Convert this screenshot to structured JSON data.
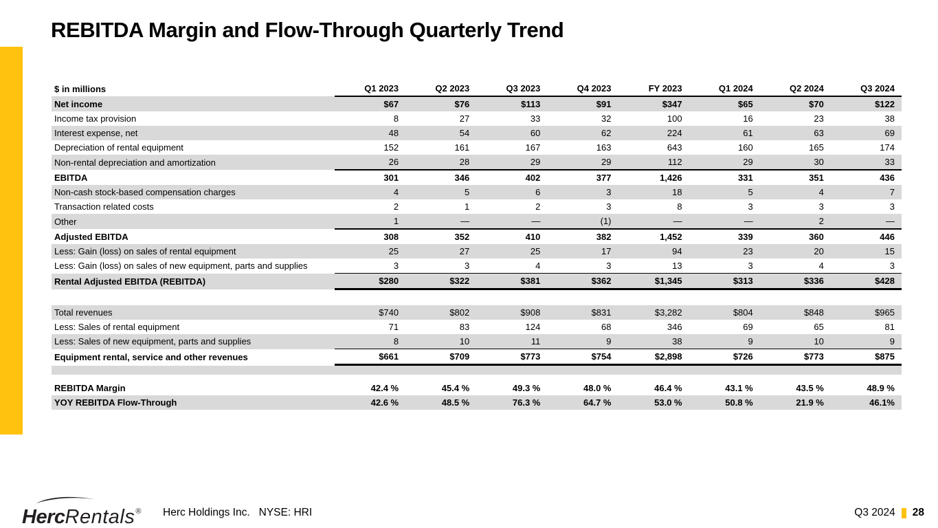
{
  "title": "REBITDA Margin and Flow-Through Quarterly Trend",
  "colors": {
    "accent": "#FFC20E",
    "row_shade": "#D9D9D9",
    "logo": "#231F20",
    "text": "#000000"
  },
  "table": {
    "units_label": "$ in millions",
    "columns": [
      "Q1 2023",
      "Q2 2023",
      "Q3 2023",
      "Q4 2023",
      "FY 2023",
      "Q1 2024",
      "Q2 2024",
      "Q3 2024"
    ],
    "rows": [
      {
        "label": "Net income",
        "values": [
          "$67",
          "$76",
          "$113",
          "$91",
          "$347",
          "$65",
          "$70",
          "$122"
        ],
        "bold": true,
        "shaded": true
      },
      {
        "label": "Income tax provision",
        "values": [
          "8",
          "27",
          "33",
          "32",
          "100",
          "16",
          "23",
          "38"
        ]
      },
      {
        "label": "Interest expense, net",
        "values": [
          "48",
          "54",
          "60",
          "62",
          "224",
          "61",
          "63",
          "69"
        ],
        "shaded": true
      },
      {
        "label": "Depreciation of rental equipment",
        "values": [
          "152",
          "161",
          "167",
          "163",
          "643",
          "160",
          "165",
          "174"
        ]
      },
      {
        "label": "Non-rental depreciation and amortization",
        "values": [
          "26",
          "28",
          "29",
          "29",
          "112",
          "29",
          "30",
          "33"
        ],
        "shaded": true,
        "rule": "medium"
      },
      {
        "label": "EBITDA",
        "values": [
          "301",
          "346",
          "402",
          "377",
          "1,426",
          "331",
          "351",
          "436"
        ],
        "bold": true
      },
      {
        "label": "Non-cash stock-based compensation charges",
        "values": [
          "4",
          "5",
          "6",
          "3",
          "18",
          "5",
          "4",
          "7"
        ],
        "shaded": true
      },
      {
        "label": "Transaction related costs",
        "values": [
          "2",
          "1",
          "2",
          "3",
          "8",
          "3",
          "3",
          "3"
        ]
      },
      {
        "label": "Other",
        "values": [
          "1",
          "—",
          "—",
          "(1)",
          "—",
          "—",
          "2",
          "—"
        ],
        "shaded": true,
        "rule": "medium"
      },
      {
        "label": "Adjusted EBITDA",
        "values": [
          "308",
          "352",
          "410",
          "382",
          "1,452",
          "339",
          "360",
          "446"
        ],
        "bold": true
      },
      {
        "label": "Less: Gain (loss) on sales of rental equipment",
        "values": [
          "25",
          "27",
          "25",
          "17",
          "94",
          "23",
          "20",
          "15"
        ],
        "shaded": true
      },
      {
        "label": "Less: Gain (loss) on sales of new equipment, parts and supplies",
        "values": [
          "3",
          "3",
          "4",
          "3",
          "13",
          "3",
          "4",
          "3"
        ],
        "rule": "thin"
      },
      {
        "label": "Rental Adjusted EBITDA (REBITDA)",
        "values": [
          "$280",
          "$322",
          "$381",
          "$362",
          "$1,345",
          "$313",
          "$336",
          "$428"
        ],
        "bold": true,
        "shaded": true,
        "rule": "thick"
      },
      {
        "type": "spacer",
        "height": 22
      },
      {
        "label": "Total revenues",
        "values": [
          "$740",
          "$802",
          "$908",
          "$831",
          "$3,282",
          "$804",
          "$848",
          "$965"
        ],
        "shaded": true
      },
      {
        "label": "Less: Sales of rental equipment",
        "values": [
          "71",
          "83",
          "124",
          "68",
          "346",
          "69",
          "65",
          "81"
        ]
      },
      {
        "label": "Less: Sales of new equipment, parts and supplies",
        "values": [
          "8",
          "10",
          "11",
          "9",
          "38",
          "9",
          "10",
          "9"
        ],
        "shaded": true,
        "rule": "thin"
      },
      {
        "label": "Equipment rental, service and other revenues",
        "values": [
          "$661",
          "$709",
          "$773",
          "$754",
          "$2,898",
          "$726",
          "$773",
          "$875"
        ],
        "bold": true,
        "rule": "thick"
      },
      {
        "type": "blank",
        "height": 13
      },
      {
        "type": "spacer",
        "height": 9
      },
      {
        "label": "REBITDA Margin",
        "values": [
          "42.4 %",
          "45.4 %",
          "49.3 %",
          "48.0 %",
          "46.4 %",
          "43.1 %",
          "43.5 %",
          "48.9 %"
        ],
        "bold": true
      },
      {
        "label": "YOY REBITDA Flow-Through",
        "values": [
          "42.6 %",
          "48.5 %",
          "76.3 %",
          "64.7 %",
          "53.0 %",
          "50.8 %",
          "21.9 %",
          "46.1%"
        ],
        "bold": true,
        "shaded": true
      }
    ]
  },
  "footer": {
    "logo_bold": "Herc",
    "logo_light": "Rentals",
    "logo_reg": "®",
    "company": "Herc Holdings Inc.",
    "ticker": "NYSE: HRI",
    "period": "Q3 2024",
    "page_number": "28"
  }
}
